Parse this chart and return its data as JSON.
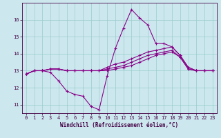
{
  "xlabel": "Windchill (Refroidissement éolien,°C)",
  "background_color": "#cce8ee",
  "grid_color": "#99cccc",
  "line_color": "#880088",
  "xlim": [
    -0.5,
    23.5
  ],
  "ylim": [
    10.5,
    17.0
  ],
  "xticks": [
    0,
    1,
    2,
    3,
    4,
    5,
    6,
    7,
    8,
    9,
    10,
    11,
    12,
    13,
    14,
    15,
    16,
    17,
    18,
    19,
    20,
    21,
    22,
    23
  ],
  "yticks": [
    11,
    12,
    13,
    14,
    15,
    16
  ],
  "series": [
    [
      12.8,
      13.0,
      13.0,
      12.9,
      12.4,
      11.8,
      11.6,
      11.5,
      10.9,
      10.7,
      12.7,
      14.3,
      15.5,
      16.6,
      16.1,
      15.7,
      14.6,
      14.6,
      14.4,
      13.9,
      13.2,
      13.0,
      13.0,
      13.0
    ],
    [
      12.8,
      13.0,
      13.0,
      13.1,
      13.1,
      13.0,
      13.0,
      13.0,
      13.0,
      13.0,
      13.2,
      13.4,
      13.5,
      13.7,
      13.9,
      14.1,
      14.2,
      14.3,
      14.4,
      13.9,
      13.2,
      13.0,
      13.0,
      13.0
    ],
    [
      12.8,
      13.0,
      13.0,
      13.1,
      13.1,
      13.0,
      13.0,
      13.0,
      13.0,
      13.0,
      13.1,
      13.2,
      13.3,
      13.5,
      13.7,
      13.9,
      14.0,
      14.1,
      14.2,
      13.8,
      13.1,
      13.0,
      13.0,
      13.0
    ],
    [
      12.8,
      13.0,
      13.0,
      13.1,
      13.1,
      13.0,
      13.0,
      13.0,
      13.0,
      13.0,
      13.0,
      13.1,
      13.2,
      13.3,
      13.5,
      13.7,
      13.9,
      14.0,
      14.1,
      13.8,
      13.1,
      13.0,
      13.0,
      13.0
    ]
  ],
  "tick_fontsize": 5.0,
  "xlabel_fontsize": 5.5,
  "marker_size": 3,
  "linewidth": 0.8
}
